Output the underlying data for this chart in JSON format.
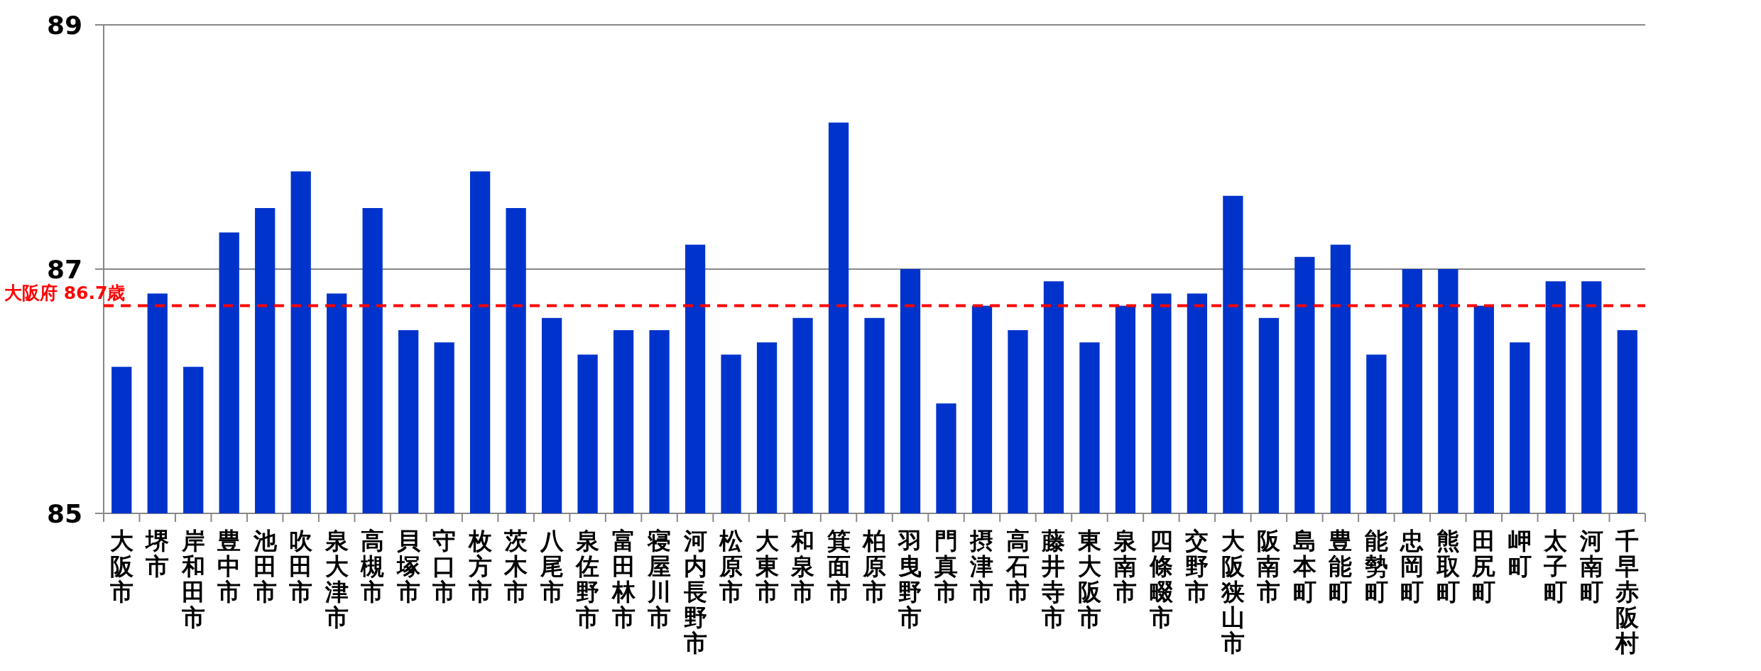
{
  "chart_data": {
    "type": "bar",
    "categories": [
      "大阪市",
      "堺市",
      "岸和田市",
      "豊中市",
      "池田市",
      "吹田市",
      "泉大津市",
      "高槻市",
      "貝塚市",
      "守口市",
      "枚方市",
      "茨木市",
      "八尾市",
      "泉佐野市",
      "富田林市",
      "寝屋川市",
      "河内長野市",
      "松原市",
      "大東市",
      "和泉市",
      "箕面市",
      "柏原市",
      "羽曳野市",
      "門真市",
      "摂津市",
      "高石市",
      "藤井寺市",
      "東大阪市",
      "泉南市",
      "四條畷市",
      "交野市",
      "大阪狭山市",
      "阪南市",
      "島本町",
      "豊能町",
      "能勢町",
      "忠岡町",
      "熊取町",
      "田尻町",
      "岬町",
      "太子町",
      "河南町",
      "千早赤阪村"
    ],
    "values": [
      86.2,
      86.8,
      86.2,
      87.3,
      87.5,
      87.8,
      86.8,
      87.5,
      86.5,
      86.4,
      87.8,
      87.5,
      86.6,
      86.3,
      86.5,
      86.5,
      87.2,
      86.3,
      86.4,
      86.6,
      88.2,
      86.6,
      87.0,
      85.9,
      86.7,
      86.5,
      86.9,
      86.4,
      86.7,
      86.8,
      86.8,
      87.6,
      86.6,
      87.1,
      87.2,
      86.3,
      87.0,
      87.0,
      86.7,
      86.4,
      86.9,
      86.9,
      86.5
    ],
    "color": "#0033cc",
    "ylim": [
      85,
      89
    ],
    "yticks": [
      85,
      87,
      89
    ],
    "grid": "y",
    "ref_lines": [
      {
        "axis": "y",
        "value": 86.7,
        "label": "大阪府 86.7歳",
        "color": "#ff0000",
        "line_style": "dashed"
      }
    ]
  }
}
